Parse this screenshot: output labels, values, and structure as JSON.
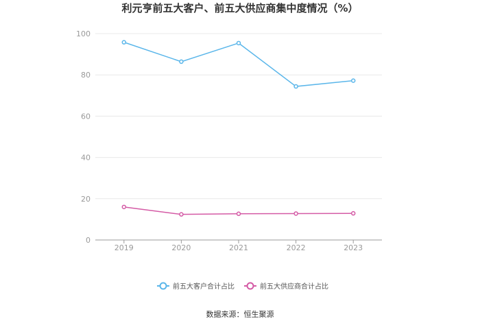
{
  "chart_data": {
    "type": "line",
    "title": "利元亨前五大客户、前五大供应商集中度情况（%）",
    "categories": [
      "2019",
      "2020",
      "2021",
      "2022",
      "2023"
    ],
    "series": [
      {
        "name": "前五大客户合计占比",
        "values": [
          95.8,
          86.4,
          95.4,
          74.4,
          77.2
        ],
        "color": "#5ab6ea"
      },
      {
        "name": "前五大供应商合计占比",
        "values": [
          16.0,
          12.4,
          12.7,
          12.8,
          12.9
        ],
        "color": "#d45aa5"
      }
    ],
    "ylim": [
      0,
      100
    ],
    "yticks": [
      0,
      20,
      40,
      60,
      80,
      100
    ],
    "grid": true,
    "legend_position": "bottom"
  },
  "source": "数据来源：恒生聚源"
}
